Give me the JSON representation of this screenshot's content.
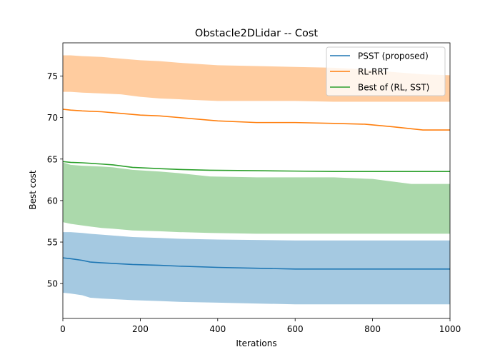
{
  "chart_data": {
    "type": "line",
    "title": "Obstacle2DLidar -- Cost",
    "xlabel": "Iterations",
    "ylabel": "Best cost",
    "xlim": [
      0,
      1000
    ],
    "ylim": [
      45.8,
      79.0
    ],
    "xticks": [
      0,
      200,
      400,
      600,
      800,
      1000
    ],
    "yticks": [
      50,
      55,
      60,
      65,
      70,
      75
    ],
    "grid": false,
    "legend_position": "top-right",
    "series": [
      {
        "name": "PSST (proposed)",
        "color": "#1f77b4",
        "x": [
          0,
          20,
          50,
          70,
          100,
          180,
          250,
          300,
          400,
          500,
          600,
          700,
          800,
          900,
          1000
        ],
        "values": [
          53.1,
          53.0,
          52.8,
          52.6,
          52.5,
          52.3,
          52.2,
          52.1,
          51.95,
          51.85,
          51.75,
          51.75,
          51.75,
          51.75,
          51.75
        ],
        "upper": [
          56.2,
          56.2,
          56.1,
          56.0,
          55.9,
          55.6,
          55.5,
          55.4,
          55.3,
          55.25,
          55.2,
          55.2,
          55.2,
          55.2,
          55.2
        ],
        "lower": [
          48.9,
          48.8,
          48.6,
          48.3,
          48.2,
          48.0,
          47.9,
          47.8,
          47.7,
          47.6,
          47.5,
          47.5,
          47.5,
          47.5,
          47.5
        ]
      },
      {
        "name": "RL-RRT",
        "color": "#ff7f0e",
        "x": [
          0,
          20,
          50,
          100,
          150,
          200,
          250,
          300,
          400,
          500,
          600,
          700,
          780,
          850,
          930,
          1000
        ],
        "values": [
          71.0,
          70.9,
          70.8,
          70.7,
          70.5,
          70.3,
          70.2,
          70.0,
          69.6,
          69.4,
          69.4,
          69.3,
          69.2,
          68.9,
          68.5,
          68.5
        ],
        "upper": [
          77.5,
          77.5,
          77.4,
          77.3,
          77.1,
          76.9,
          76.8,
          76.6,
          76.3,
          76.2,
          76.1,
          76.0,
          75.8,
          75.5,
          75.2,
          75.1
        ],
        "lower": [
          73.1,
          73.1,
          73.0,
          72.9,
          72.8,
          72.5,
          72.3,
          72.2,
          72.0,
          72.0,
          72.0,
          71.9,
          71.9,
          71.9,
          71.9,
          71.9
        ]
      },
      {
        "name": "Best of (RL, SST)",
        "color": "#2ca02c",
        "x": [
          0,
          20,
          50,
          100,
          130,
          180,
          250,
          300,
          380,
          500,
          600,
          700,
          800,
          900,
          1000
        ],
        "values": [
          64.7,
          64.6,
          64.55,
          64.4,
          64.3,
          64.0,
          63.85,
          63.75,
          63.65,
          63.6,
          63.55,
          63.5,
          63.5,
          63.5,
          63.5
        ],
        "upper": [
          64.6,
          64.3,
          64.2,
          64.1,
          64.0,
          63.7,
          63.5,
          63.3,
          62.9,
          62.8,
          62.8,
          62.8,
          62.6,
          62.0,
          62.0
        ],
        "lower": [
          57.4,
          57.2,
          57.0,
          56.7,
          56.6,
          56.4,
          56.3,
          56.2,
          56.1,
          56.0,
          56.0,
          56.0,
          56.0,
          56.0,
          56.0
        ]
      }
    ]
  }
}
